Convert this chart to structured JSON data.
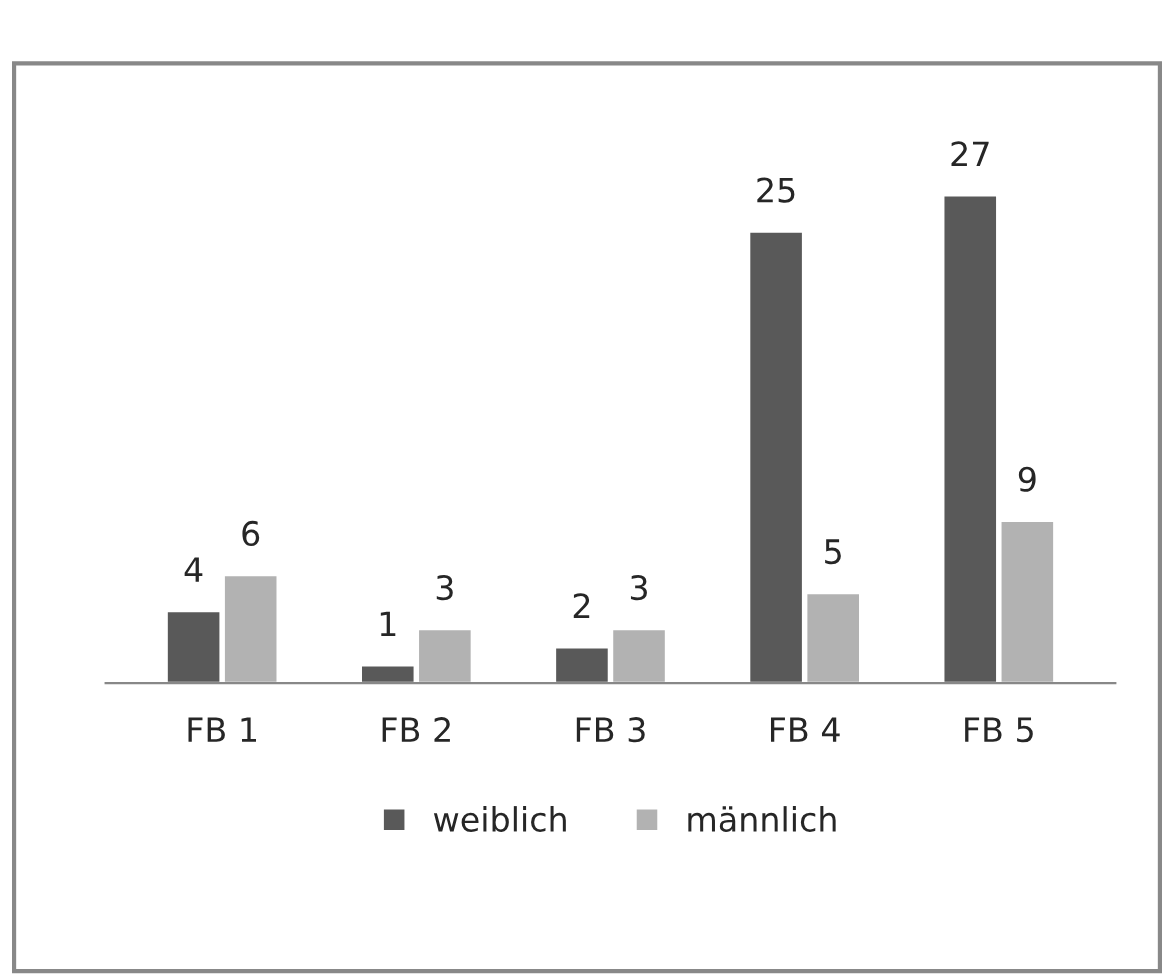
{
  "chart_data": {
    "type": "bar",
    "categories": [
      "FB 1",
      "FB 2",
      "FB 3",
      "FB 4",
      "FB 5"
    ],
    "series": [
      {
        "name": "weiblich",
        "color": "#595959",
        "values": [
          4,
          1,
          2,
          25,
          27
        ]
      },
      {
        "name": "männlich",
        "color": "#b2b2b2",
        "values": [
          6,
          3,
          3,
          5,
          9
        ]
      }
    ],
    "data_labels": true,
    "legend": "bottom",
    "grid": false
  }
}
